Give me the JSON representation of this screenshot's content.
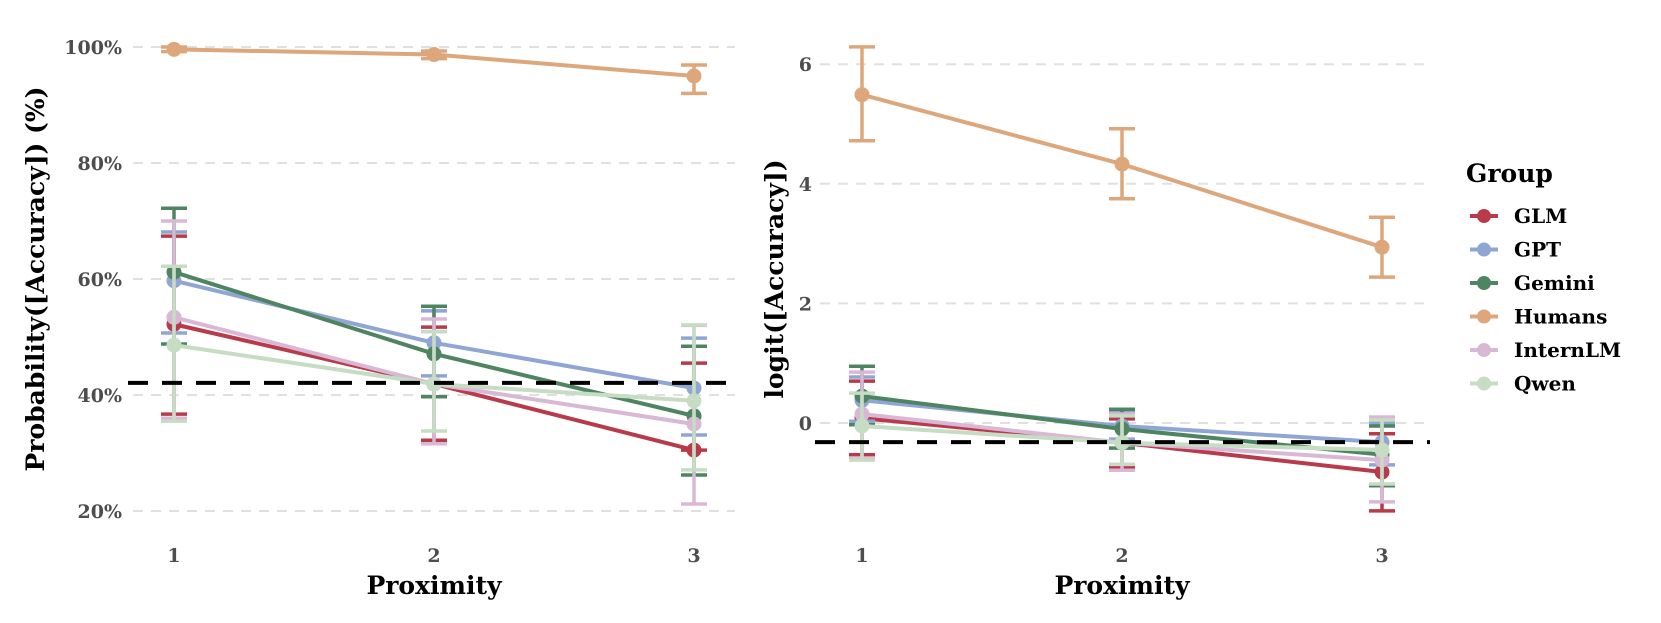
{
  "chart_data": [
    {
      "type": "line",
      "panel": "left",
      "title": "",
      "xlabel": "Proximity",
      "ylabel": "Probability([Accuracy]) (%)",
      "x": [
        1,
        2,
        3
      ],
      "x_tick_labels": [
        "1",
        "2",
        "3"
      ],
      "ylim": [
        15,
        102
      ],
      "y_ticks": [
        20,
        40,
        60,
        80,
        100
      ],
      "y_tick_labels": [
        "20%",
        "40%",
        "60%",
        "80%",
        "100%"
      ],
      "grid": true,
      "reference_line": 42.1,
      "error_bars": true,
      "series": [
        {
          "name": "GLM",
          "values": [
            52.2,
            41.9,
            30.5
          ],
          "lower": [
            36.7,
            32.2,
            30.5
          ],
          "upper": [
            67.4,
            51.7,
            45.5
          ]
        },
        {
          "name": "GPT",
          "values": [
            59.7,
            49.0,
            41.2
          ],
          "lower": [
            50.7,
            43.3,
            33.1
          ],
          "upper": [
            68.1,
            54.5,
            49.8
          ]
        },
        {
          "name": "Gemini",
          "values": [
            61.2,
            47.1,
            36.4
          ],
          "lower": [
            48.8,
            39.7,
            26.2
          ],
          "upper": [
            72.2,
            55.3,
            48.4
          ]
        },
        {
          "name": "Humans",
          "values": [
            99.6,
            98.7,
            95.0
          ],
          "lower": [
            99.2,
            98.0,
            92.0
          ],
          "upper": [
            100.0,
            99.3,
            96.9
          ]
        },
        {
          "name": "InternLM",
          "values": [
            53.4,
            41.9,
            35.0
          ],
          "lower": [
            36.0,
            31.6,
            21.2
          ],
          "upper": [
            70.0,
            53.1,
            52.0
          ]
        },
        {
          "name": "Qwen",
          "values": [
            48.6,
            41.9,
            39.0
          ],
          "lower": [
            35.5,
            33.8,
            27.1
          ],
          "upper": [
            62.2,
            50.9,
            52.1
          ]
        }
      ]
    },
    {
      "type": "line",
      "panel": "right",
      "title": "",
      "xlabel": "Proximity",
      "ylabel": "logit([Accuracy])",
      "x": [
        1,
        2,
        3
      ],
      "x_tick_labels": [
        "1",
        "2",
        "3"
      ],
      "ylim": [
        -1.65,
        6.9
      ],
      "y_ticks": [
        0,
        2,
        4,
        6
      ],
      "y_tick_labels": [
        "0",
        "2",
        "4",
        "6"
      ],
      "grid": true,
      "reference_line": -0.32,
      "error_bars": true,
      "series": [
        {
          "name": "GLM",
          "values": [
            0.08,
            -0.33,
            -0.82
          ],
          "lower": [
            -0.53,
            -0.75,
            -1.47
          ],
          "upper": [
            0.7,
            0.07,
            -0.18
          ]
        },
        {
          "name": "GPT",
          "values": [
            0.38,
            -0.05,
            -0.32
          ],
          "lower": [
            0.03,
            -0.27,
            -0.7
          ],
          "upper": [
            0.77,
            0.18,
            0.0
          ]
        },
        {
          "name": "Gemini",
          "values": [
            0.45,
            -0.1,
            -0.53
          ],
          "lower": [
            -0.03,
            -0.42,
            -1.05
          ],
          "upper": [
            0.95,
            0.23,
            -0.05
          ]
        },
        {
          "name": "Humans",
          "values": [
            5.49,
            4.33,
            2.94
          ],
          "lower": [
            4.72,
            3.75,
            2.44
          ],
          "upper": [
            6.29,
            4.92,
            3.44
          ]
        },
        {
          "name": "InternLM",
          "values": [
            0.15,
            -0.33,
            -0.62
          ],
          "lower": [
            -0.6,
            -0.79,
            -1.32
          ],
          "upper": [
            0.85,
            0.15,
            0.1
          ]
        },
        {
          "name": "Qwen",
          "values": [
            -0.05,
            -0.33,
            -0.45
          ],
          "lower": [
            -0.62,
            -0.69,
            -1.02
          ],
          "upper": [
            0.5,
            0.12,
            0.05
          ]
        }
      ]
    }
  ],
  "legend": {
    "title": "Group",
    "placement": "right",
    "items": [
      {
        "name": "GLM",
        "color": "#b83a4b"
      },
      {
        "name": "GPT",
        "color": "#8fa5d3"
      },
      {
        "name": "Gemini",
        "color": "#4e8461"
      },
      {
        "name": "Humans",
        "color": "#dda77b"
      },
      {
        "name": "InternLM",
        "color": "#d9b8d6"
      },
      {
        "name": "Qwen",
        "color": "#c6dcc3"
      }
    ]
  }
}
